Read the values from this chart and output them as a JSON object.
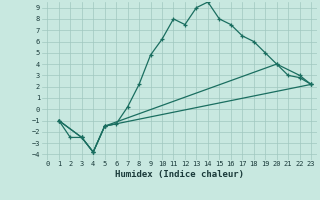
{
  "xlabel": "Humidex (Indice chaleur)",
  "xlim": [
    -0.5,
    23.5
  ],
  "ylim": [
    -4.5,
    9.5
  ],
  "xticks": [
    0,
    1,
    2,
    3,
    4,
    5,
    6,
    7,
    8,
    9,
    10,
    11,
    12,
    13,
    14,
    15,
    16,
    17,
    18,
    19,
    20,
    21,
    22,
    23
  ],
  "yticks": [
    -4,
    -3,
    -2,
    -1,
    0,
    1,
    2,
    3,
    4,
    5,
    6,
    7,
    8,
    9
  ],
  "bg_color": "#c8e8e0",
  "grid_color": "#a0c8c0",
  "line_color": "#1a6e60",
  "line1_x": [
    1,
    2,
    3,
    4,
    5,
    6,
    7,
    8,
    9,
    10,
    11,
    12,
    13,
    14,
    15,
    16,
    17,
    18,
    19,
    20,
    21,
    22,
    23
  ],
  "line1_y": [
    -1.0,
    -2.5,
    -2.5,
    -3.8,
    -1.5,
    -1.3,
    0.2,
    2.2,
    4.8,
    6.2,
    8.0,
    7.5,
    9.0,
    9.5,
    8.0,
    7.5,
    6.5,
    6.0,
    5.0,
    4.0,
    3.0,
    2.8,
    2.2
  ],
  "line2_x": [
    1,
    3,
    4,
    5,
    20,
    22,
    23
  ],
  "line2_y": [
    -1.0,
    -2.5,
    -3.8,
    -1.5,
    4.0,
    3.0,
    2.2
  ],
  "line3_x": [
    1,
    3,
    4,
    5,
    23
  ],
  "line3_y": [
    -1.0,
    -2.5,
    -3.8,
    -1.5,
    2.2
  ]
}
